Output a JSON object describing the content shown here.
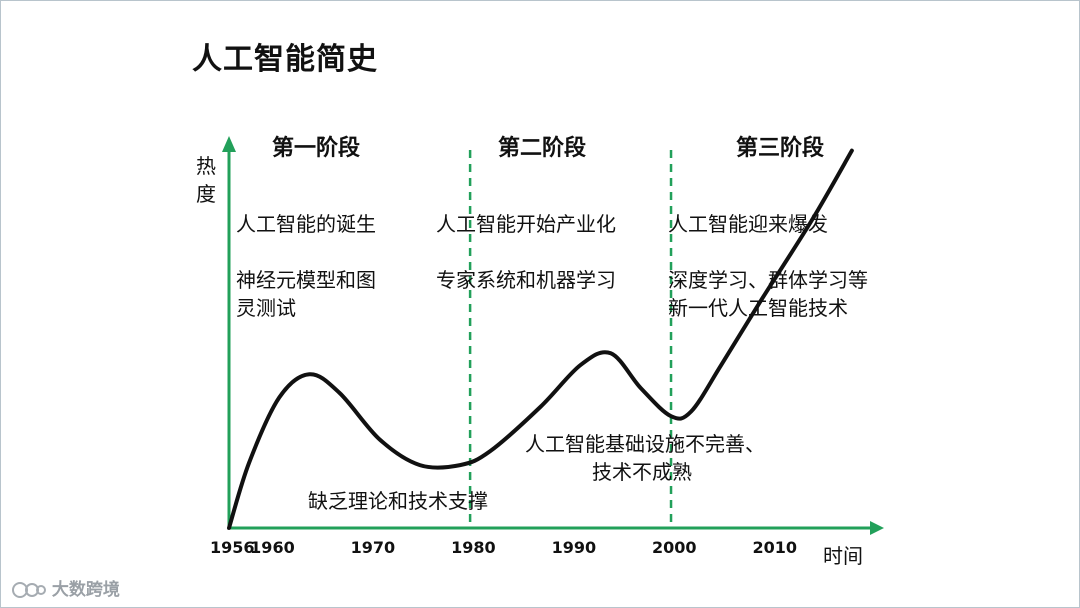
{
  "title": "人工智能简史",
  "y_axis_label": [
    "热",
    "度"
  ],
  "x_axis_label": "时间",
  "stages": [
    {
      "name": "第一阶段",
      "headline": "人工智能的诞生",
      "detail": [
        "神经元模型和图",
        "灵测试"
      ]
    },
    {
      "name": "第二阶段",
      "headline": "人工智能开始产业化",
      "detail": [
        "专家系统和机器学习"
      ]
    },
    {
      "name": "第三阶段",
      "headline": "人工智能迎来爆发",
      "detail": [
        "深度学习、群体学习等",
        "新一代人工智能技术"
      ]
    }
  ],
  "troughs": [
    {
      "text": [
        "缺乏理论和技术支撑"
      ]
    },
    {
      "text": [
        "人工智能基础设施不完善、",
        "技术不成熟"
      ]
    }
  ],
  "brand": "大数跨境",
  "colors": {
    "axis": "#22a05a",
    "curve": "#111111",
    "divider": "#22a05a"
  },
  "chart_data": {
    "type": "line",
    "title": "人工智能简史",
    "xlabel": "时间",
    "ylabel": "热度",
    "x_ticks": [
      1956,
      1960,
      1970,
      1980,
      1990,
      2000,
      2010
    ],
    "dividers": [
      1980,
      2000
    ],
    "series": [
      {
        "x": [
          1956,
          1958,
          1961,
          1964,
          1967,
          1971,
          1975,
          1979,
          1982,
          1987,
          1991,
          1994,
          1997,
          2000,
          2002,
          2005,
          2009,
          2014,
          2018
        ],
        "y": [
          0,
          28,
          56,
          66,
          58,
          38,
          27,
          27,
          33,
          52,
          70,
          75,
          60,
          48,
          50,
          70,
          98,
          132,
          162
        ]
      }
    ],
    "ylim": [
      0,
      170
    ],
    "xlim": [
      1956,
      2021
    ]
  }
}
